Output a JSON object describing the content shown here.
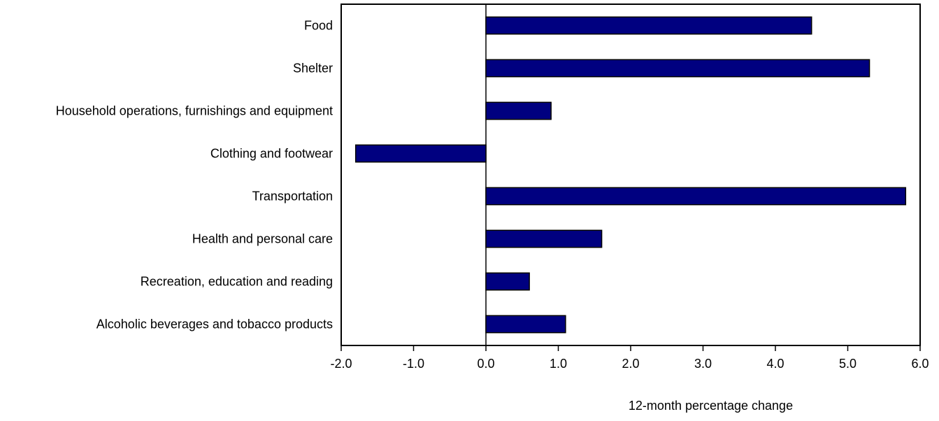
{
  "chart_data": {
    "type": "bar",
    "orientation": "horizontal",
    "title": "",
    "xlabel": "12-month percentage change",
    "ylabel": "",
    "categories": [
      "Food",
      "Shelter",
      "Household operations, furnishings and equipment",
      "Clothing and footwear",
      "Transportation",
      "Health and personal care",
      "Recreation, education and reading",
      "Alcoholic beverages and tobacco products"
    ],
    "values": [
      4.5,
      5.3,
      0.9,
      -1.8,
      5.8,
      1.6,
      0.6,
      1.1
    ],
    "xlim": [
      -2.0,
      6.0
    ],
    "xticks": [
      -2.0,
      -1.0,
      0.0,
      1.0,
      2.0,
      3.0,
      4.0,
      5.0,
      6.0
    ],
    "xtick_labels": [
      "-2.0",
      "-1.0",
      "0.0",
      "1.0",
      "2.0",
      "3.0",
      "4.0",
      "5.0",
      "6.0"
    ],
    "grid": false,
    "legend": "none",
    "bar_color": "#000080"
  }
}
